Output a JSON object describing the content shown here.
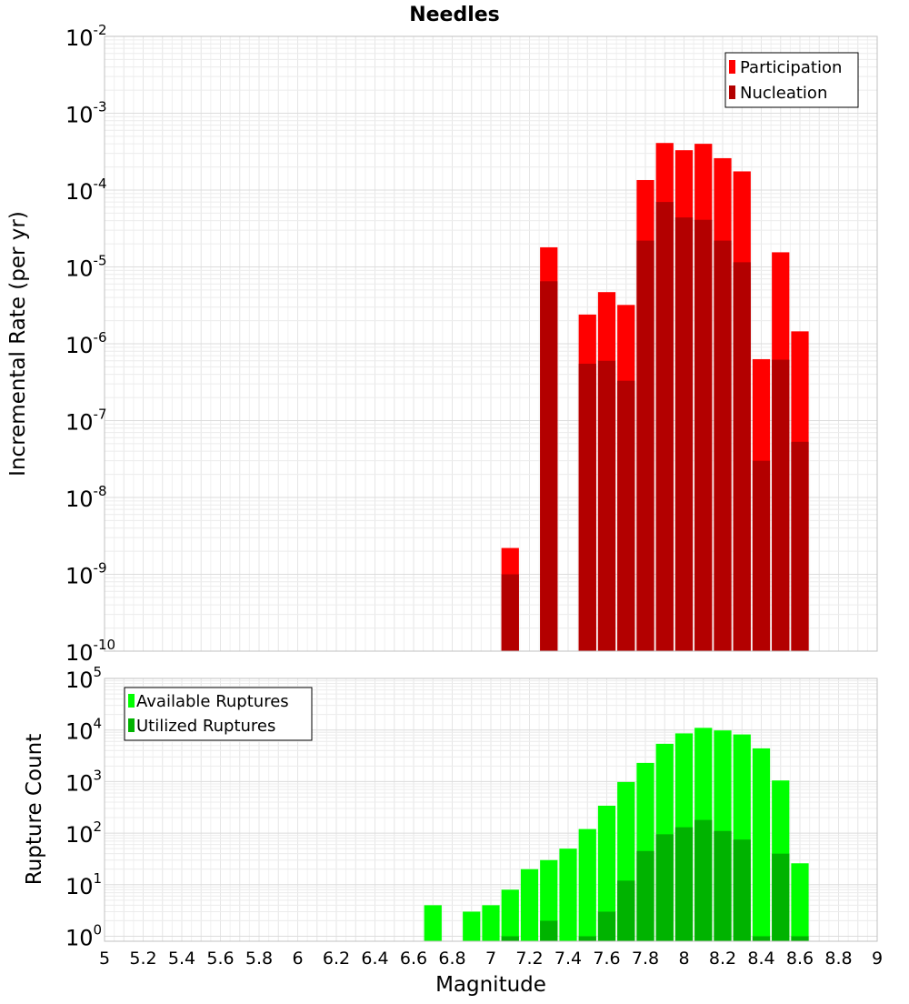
{
  "chart_data": [
    {
      "panel": "top",
      "type": "bar",
      "title": "Needles",
      "ylabel": "Incremental Rate (per yr)",
      "yscale": "log",
      "ylim": [
        1e-10,
        0.01
      ],
      "xlim": [
        5,
        9
      ],
      "legend": {
        "placement": "top-right"
      },
      "ytick_exponents": [
        "-10",
        "-9",
        "-8",
        "-7",
        "-6",
        "-5",
        "-4",
        "-3",
        "-2"
      ],
      "x": [
        7.1,
        7.3,
        7.5,
        7.6,
        7.7,
        7.8,
        7.9,
        8.0,
        8.1,
        8.2,
        8.3,
        8.4,
        8.5,
        8.6
      ],
      "series": [
        {
          "name": "Participation",
          "color": "#ff0000",
          "values": [
            2.2e-09,
            1.8e-05,
            2.4e-06,
            4.7e-06,
            3.2e-06,
            0.000135,
            0.00041,
            0.00033,
            0.0004,
            0.00026,
            0.000175,
            6.3e-07,
            1.55e-05,
            1.45e-06
          ]
        },
        {
          "name": "Nucleation",
          "color": "#b30000",
          "values": [
            1e-09,
            6.5e-06,
            5.5e-07,
            6e-07,
            3.3e-07,
            2.2e-05,
            7e-05,
            4.4e-05,
            4.1e-05,
            2.2e-05,
            1.15e-05,
            3e-08,
            6.2e-07,
            5.3e-08
          ]
        }
      ]
    },
    {
      "panel": "bottom",
      "type": "bar",
      "ylabel": "Rupture Count",
      "xlabel": "Magnitude",
      "yscale": "log",
      "ylim": [
        0.8,
        100000.0
      ],
      "xlim": [
        5,
        9
      ],
      "legend": {
        "placement": "top-left"
      },
      "ytick_exponents": [
        "0",
        "1",
        "2",
        "3",
        "4",
        "5"
      ],
      "xtick_labels": [
        "5",
        "5.2",
        "5.4",
        "5.6",
        "5.8",
        "6",
        "6.2",
        "6.4",
        "6.6",
        "6.8",
        "7",
        "7.2",
        "7.4",
        "7.6",
        "7.8",
        "8",
        "8.2",
        "8.4",
        "8.6",
        "8.8",
        "9"
      ],
      "x": [
        6.7,
        6.9,
        7.0,
        7.1,
        7.2,
        7.3,
        7.4,
        7.5,
        7.6,
        7.7,
        7.8,
        7.9,
        8.0,
        8.1,
        8.2,
        8.3,
        8.4,
        8.5,
        8.6
      ],
      "series": [
        {
          "name": "Available Ruptures",
          "color": "#00ff00",
          "values": [
            4,
            3,
            4,
            8,
            20,
            30,
            50,
            120,
            340,
            980,
            2300,
            5400,
            8600,
            11000,
            9800,
            8200,
            4400,
            1050,
            26
          ]
        },
        {
          "name": "Utilized Ruptures",
          "color": "#00b300",
          "values": [
            0,
            0,
            0,
            1,
            0,
            2,
            0,
            1,
            3,
            12,
            45,
            95,
            130,
            180,
            110,
            75,
            1,
            40,
            1
          ]
        }
      ]
    }
  ]
}
